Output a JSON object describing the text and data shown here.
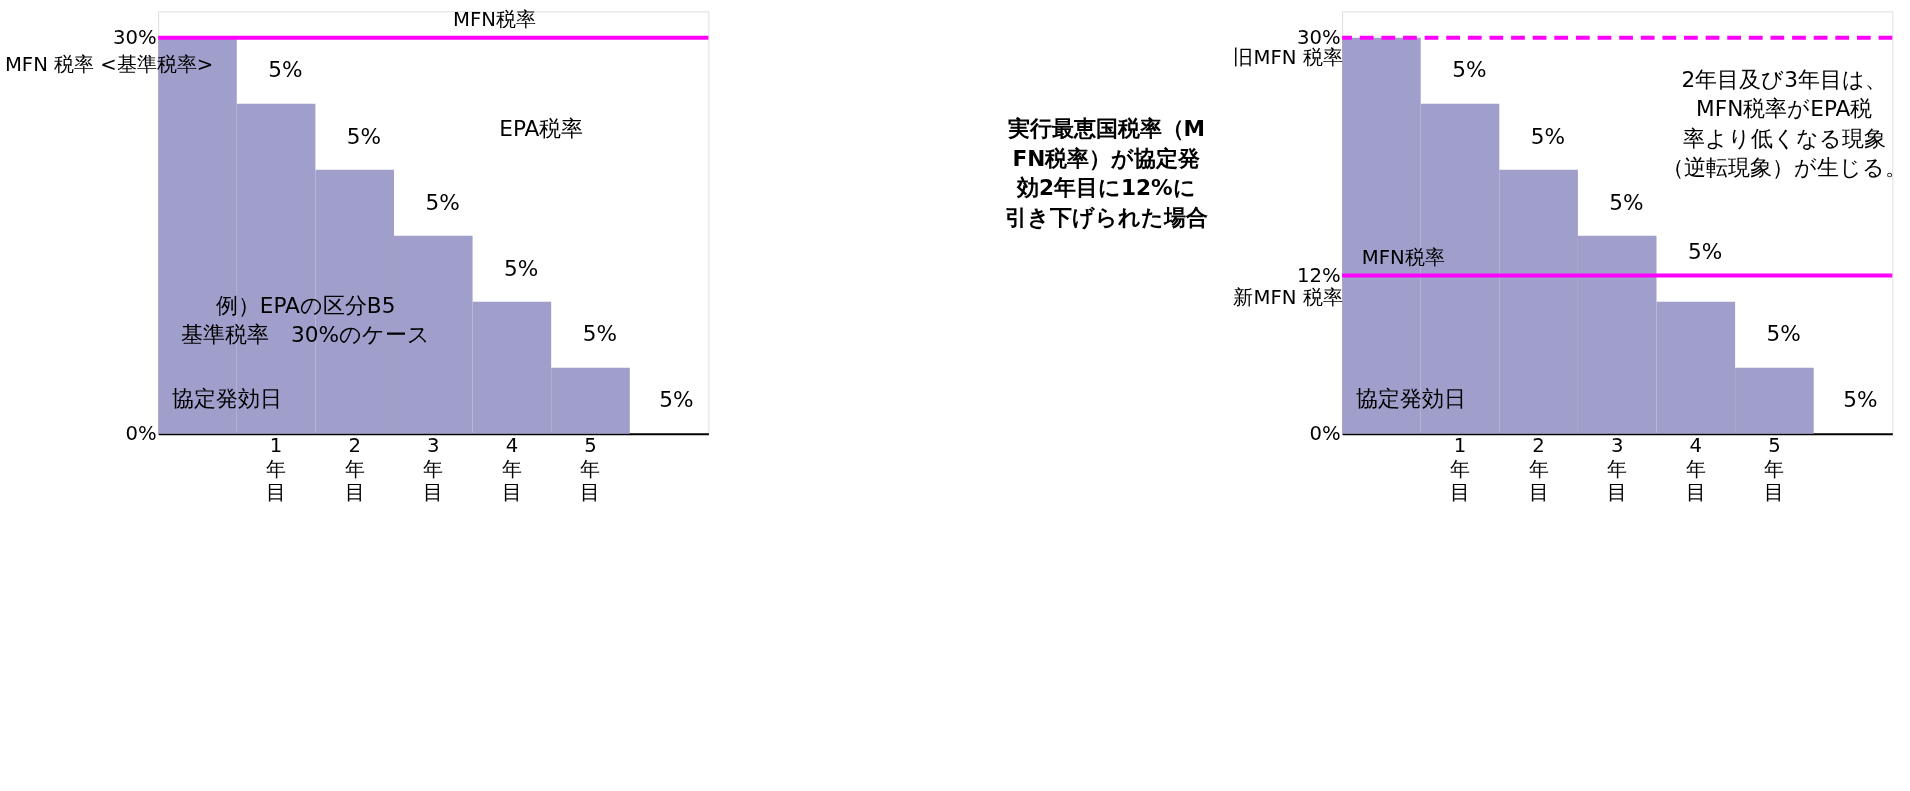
{
  "chart_data": [
    {
      "type": "bar",
      "relative": false,
      "categories": [
        null,
        "1年目",
        "2年目",
        "3年目",
        "4年目",
        "5年目",
        null
      ],
      "series": [
        {
          "color": "#a09fcb",
          "values": [
            30,
            25,
            20,
            15,
            10,
            5,
            0
          ]
        }
      ],
      "ylim": [
        0,
        32
      ],
      "yticks": [
        {
          "value": 0,
          "label": "0%"
        },
        {
          "value": 30,
          "label": "30%"
        }
      ],
      "ref_lines": [
        {
          "axis": "y",
          "value": 30,
          "label": "MFN税率",
          "color": "#ff00ff",
          "line_style": "solid"
        }
      ],
      "annotations": [
        "5%",
        "5%",
        "5%",
        "5%",
        "5%",
        "MFN 税率\n<基準税率>",
        "EPA税率",
        "例）EPAの区分B5基準税率　30%のケース",
        "協定発効日",
        "5%"
      ]
    },
    {
      "type": "bar",
      "categories": [
        null,
        "1年目",
        "2年目",
        "3年目",
        "4年目",
        "5年目",
        null
      ],
      "series": [
        {
          "color": "#a09fcb",
          "values": [
            30,
            25,
            20,
            15,
            10,
            5,
            0
          ]
        }
      ],
      "ylim": [
        0,
        32
      ],
      "yticks": [
        {
          "value": 0,
          "label": "0%"
        },
        {
          "value": 12,
          "label": "12%"
        },
        {
          "value": 30,
          "label": "30%"
        }
      ],
      "ref_lines": [
        {
          "axis": "y",
          "value": 30,
          "label": null,
          "color": "#ff00ff",
          "line_style": "dashed"
        },
        {
          "axis": "y",
          "value": 12,
          "label": "MFN税率",
          "color": "#ff00ff",
          "line_style": "solid"
        }
      ],
      "annotations": [
        "5%",
        "5%",
        "5%",
        "5%",
        "5%",
        "旧MFN 税率",
        "新MFN 税率",
        "実行最恵国税率（MFN税率）が協定発効2年目に12%に引き下げられた場合",
        "2年目及び3年目は、MFN税率がEPA税率より低くなる現象（逆転現象）が生じる。",
        "協定発効日",
        "5%"
      ]
    }
  ]
}
